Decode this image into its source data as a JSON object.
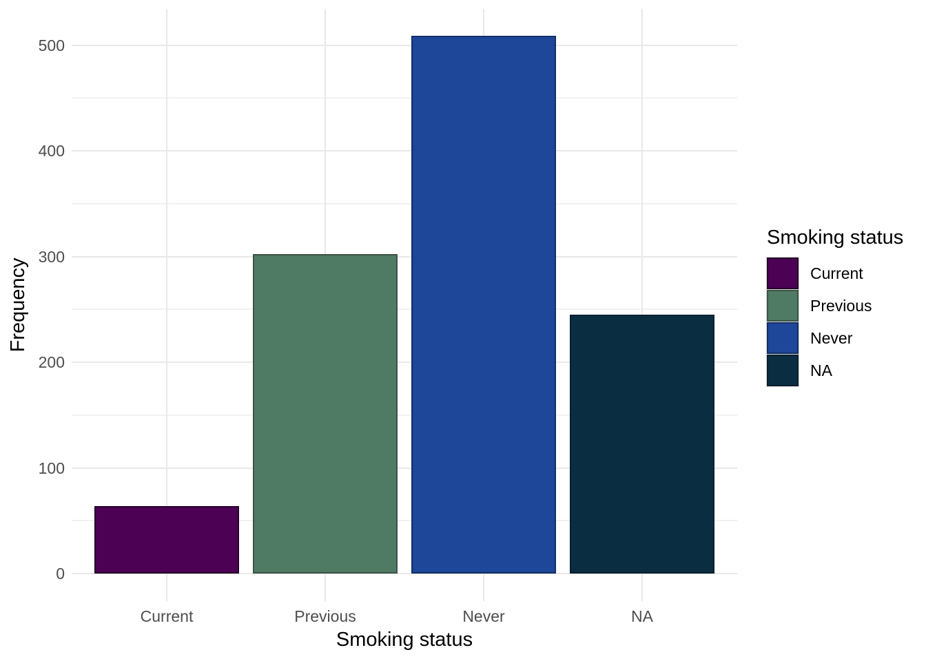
{
  "chart_data": {
    "type": "bar",
    "categories": [
      "Current",
      "Previous",
      "Never",
      "NA"
    ],
    "values": [
      64,
      302,
      509,
      245
    ],
    "title": "",
    "xlabel": "Smoking status",
    "ylabel": "Frequency",
    "ylim": [
      -25,
      534
    ],
    "yticks": [
      0,
      100,
      200,
      300,
      400,
      500
    ],
    "yticks_minor": [
      50,
      150,
      250,
      350,
      450
    ],
    "grid": "major and minor horizontal, major vertical at category centers",
    "legend_position": "right",
    "bar_fill_colors": [
      "#4c0155",
      "#4f7a64",
      "#1e4699",
      "#0b2d42"
    ],
    "bar_border_colors": [
      "#240129",
      "#3a5345",
      "#132e66",
      "#05202f"
    ],
    "legend": {
      "title": "Smoking status",
      "entries": [
        {
          "label": "Current",
          "fill": "#4c0155",
          "border": "#240129"
        },
        {
          "label": "Previous",
          "fill": "#4f7a64",
          "border": "#3a5345"
        },
        {
          "label": "Never",
          "fill": "#1e4699",
          "border": "#132e66"
        },
        {
          "label": "NA",
          "fill": "#0b2d42",
          "border": "#05202f"
        }
      ]
    }
  },
  "theme": {
    "background": "#ffffff",
    "grid_major_color": "#e8e8e8",
    "grid_minor_color": "#f1f1f1",
    "tick_label_color": "#4d4d4d",
    "axis_title_color": "#000000"
  }
}
